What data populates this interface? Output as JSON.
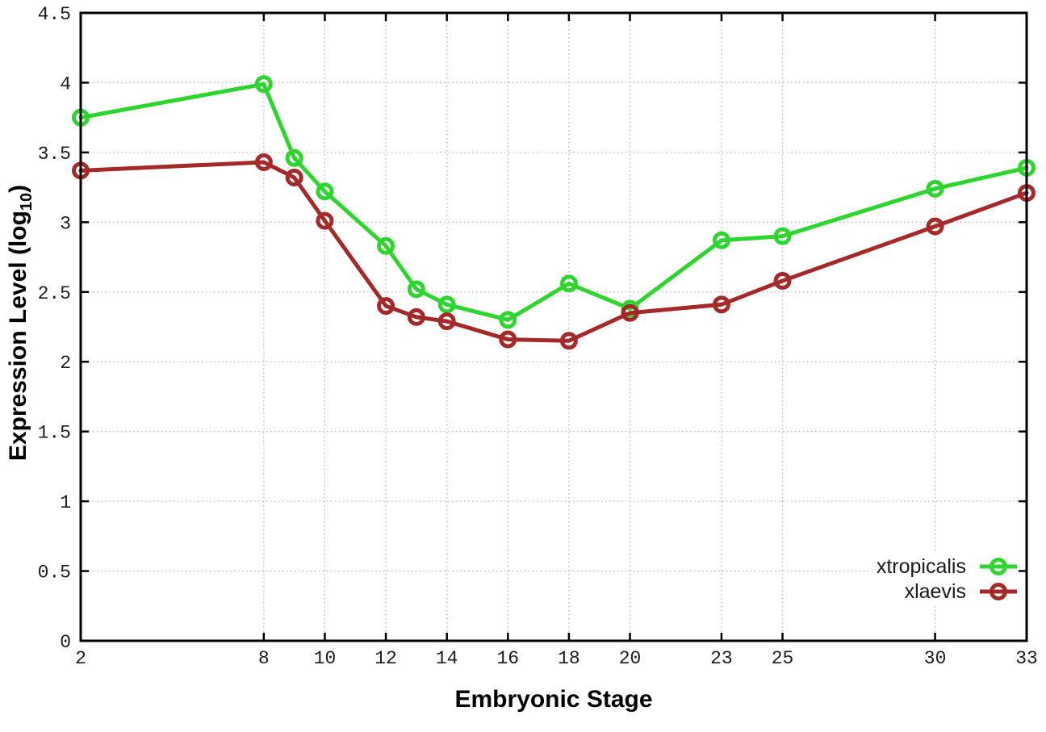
{
  "chart_data": {
    "type": "line",
    "title": "",
    "xlabel": "Embryonic Stage",
    "ylabel_main": "Expression Level (log",
    "ylabel_sub": "10",
    "ylabel_close": ")",
    "x": [
      2,
      8,
      9,
      10,
      12,
      13,
      14,
      16,
      18,
      20,
      23,
      25,
      30,
      33
    ],
    "series": [
      {
        "name": "xtropicalis",
        "color": "#2fd52f",
        "values": [
          3.75,
          3.99,
          3.46,
          3.22,
          2.83,
          2.52,
          2.41,
          2.3,
          2.56,
          2.38,
          2.87,
          2.9,
          3.24,
          3.39
        ]
      },
      {
        "name": "xlaevis",
        "color": "#a62929",
        "values": [
          3.37,
          3.43,
          3.32,
          3.01,
          2.4,
          2.32,
          2.29,
          2.16,
          2.15,
          2.35,
          2.41,
          2.58,
          2.97,
          3.21
        ]
      }
    ],
    "xlim": [
      2,
      33
    ],
    "ylim": [
      0,
      4.5
    ],
    "x_ticks": [
      2,
      8,
      10,
      12,
      14,
      16,
      18,
      20,
      23,
      25,
      30,
      33
    ],
    "y_ticks": [
      0,
      0.5,
      1,
      1.5,
      2,
      2.5,
      3,
      3.5,
      4,
      4.5
    ],
    "grid": true,
    "legend_position": "bottom-right",
    "marker": "open-circle",
    "colors": {
      "axis": "#000000",
      "grid": "#b5b5b5",
      "tick_label": "#1c1c1c",
      "background": "#ffffff"
    }
  }
}
